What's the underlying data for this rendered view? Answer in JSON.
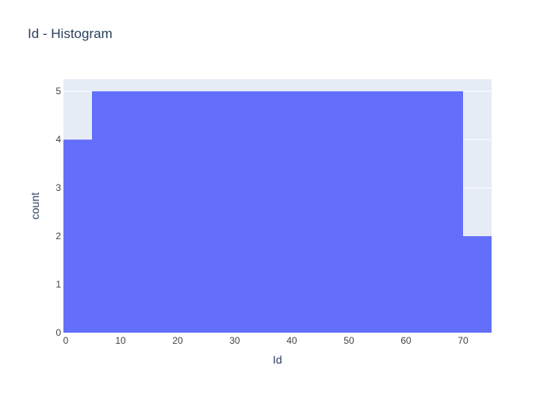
{
  "chart_data": {
    "type": "bar",
    "title": "Id - Histogram",
    "xlabel": "Id",
    "ylabel": "count",
    "bins": [
      {
        "start": -5,
        "end": 4.99,
        "count": 4
      },
      {
        "start": 5,
        "end": 9.99,
        "count": 5
      },
      {
        "start": 10,
        "end": 14.99,
        "count": 5
      },
      {
        "start": 15,
        "end": 19.99,
        "count": 5
      },
      {
        "start": 20,
        "end": 24.99,
        "count": 5
      },
      {
        "start": 25,
        "end": 29.99,
        "count": 5
      },
      {
        "start": 30,
        "end": 34.99,
        "count": 5
      },
      {
        "start": 35,
        "end": 39.99,
        "count": 5
      },
      {
        "start": 40,
        "end": 44.99,
        "count": 5
      },
      {
        "start": 45,
        "end": 49.99,
        "count": 5
      },
      {
        "start": 50,
        "end": 54.99,
        "count": 5
      },
      {
        "start": 55,
        "end": 59.99,
        "count": 5
      },
      {
        "start": 60,
        "end": 64.99,
        "count": 5
      },
      {
        "start": 65,
        "end": 69.99,
        "count": 5
      },
      {
        "start": 70,
        "end": 74.99,
        "count": 2
      }
    ],
    "xlim": [
      0,
      75
    ],
    "ylim": [
      0,
      5.25
    ],
    "xticks": [
      0,
      10,
      20,
      30,
      40,
      50,
      60,
      70
    ],
    "yticks": [
      0,
      1,
      2,
      3,
      4,
      5
    ],
    "grid": true,
    "legend": "none",
    "colors": {
      "bar": "#636efa",
      "plot_background": "#e5ecf6",
      "grid": "#ffffff",
      "text": "#2a3f5f",
      "tick_text": "#444444"
    }
  }
}
